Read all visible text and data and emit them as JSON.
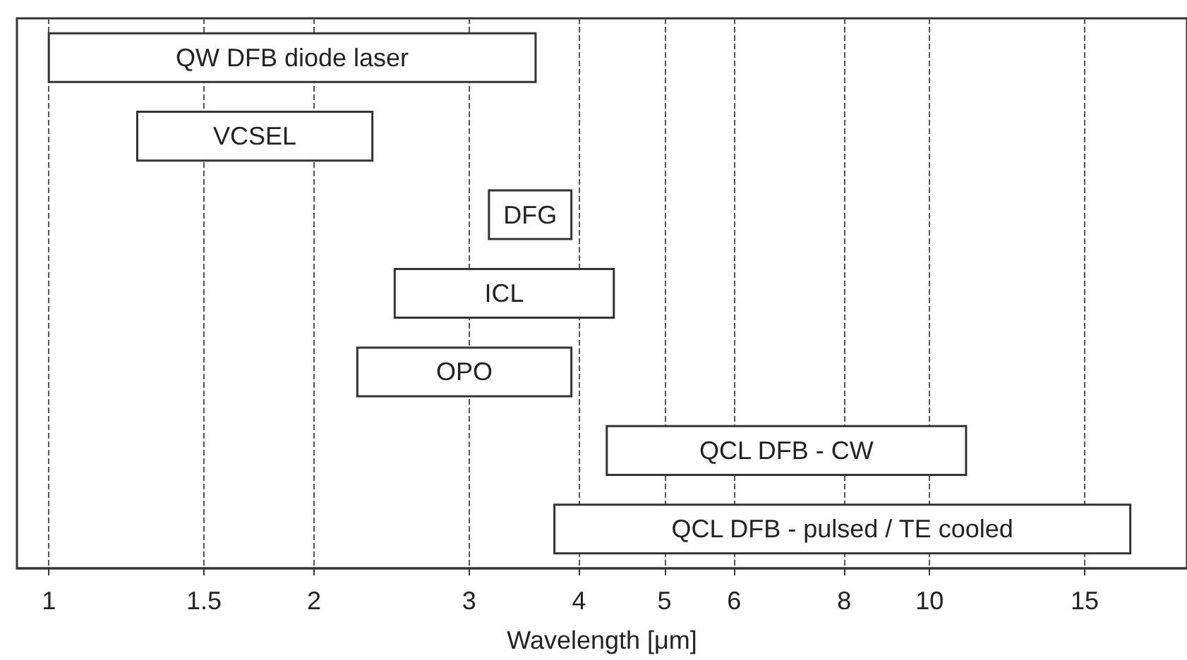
{
  "chart_data": {
    "type": "bar",
    "orientation": "horizontal",
    "xlabel": "Wavelength [μm]",
    "categories": [
      "QW DFB diode laser",
      "VCSEL",
      "DFG",
      "ICL",
      "OPO",
      "QCL DFB - CW",
      "QCL DFB - pulsed / TE cooled"
    ],
    "base": [
      1,
      1.26,
      3.16,
      2.47,
      2.24,
      4.3,
      3.75
    ],
    "values": [
      2.57,
      1.07,
      0.76,
      1.91,
      1.68,
      6.7,
      13.15
    ],
    "color": "#ffffff",
    "log": "x",
    "xlim": [
      0.92,
      19.6
    ],
    "xticks": [
      1,
      1.5,
      2,
      3,
      4,
      5,
      6,
      8,
      10,
      15
    ],
    "grid": "x",
    "tick_labels": "x"
  }
}
